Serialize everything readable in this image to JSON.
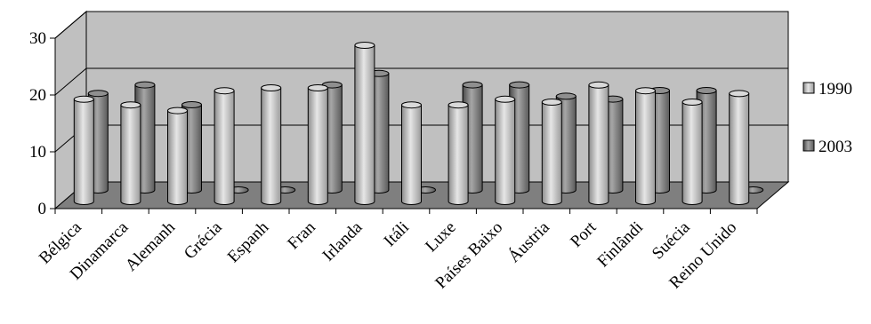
{
  "chart_data": {
    "type": "bar",
    "title": "",
    "xlabel": "",
    "ylabel": "",
    "ylim": [
      0,
      30
    ],
    "yticks": [
      "0",
      "10",
      "20",
      "30"
    ],
    "grid": true,
    "legend_position": "right",
    "categories": [
      "Bélgica",
      "Dinamarca",
      "Alemanh",
      "Grécia",
      "Espanh",
      "Fran",
      "Irlanda",
      "Itáli",
      "Luxe",
      "Países Baixo",
      "Áustria",
      "Port",
      "Finlândi",
      "Suécia",
      "Reino Unido"
    ],
    "series": [
      {
        "name": "1990",
        "color": "#c8c8c8",
        "values": [
          18,
          17,
          16,
          19.5,
          20,
          20,
          27.5,
          17,
          17,
          18,
          17.5,
          20.5,
          19.5,
          17.5,
          19
        ]
      },
      {
        "name": "2003",
        "color": "#7a7a7a",
        "values": [
          17,
          18.5,
          15,
          0,
          0,
          18.5,
          20.5,
          0,
          18.5,
          18.5,
          16.5,
          16,
          17.5,
          17.5,
          0
        ]
      }
    ]
  }
}
